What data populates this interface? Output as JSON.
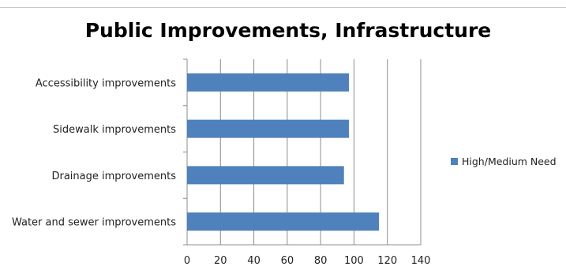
{
  "chart_data": {
    "type": "bar",
    "orientation": "horizontal",
    "title": "Public Improvements, Infrastructure",
    "categories": [
      "Accessibility improvements",
      "Sidewalk improvements",
      "Drainage improvements",
      "Water and sewer improvements"
    ],
    "series": [
      {
        "name": "High/Medium Need",
        "values": [
          97,
          97,
          94,
          115
        ],
        "color": "#4f81bd"
      }
    ],
    "xlim": [
      0,
      140
    ],
    "xticks": [
      0,
      20,
      40,
      60,
      80,
      100,
      120,
      140
    ],
    "grid": "vertical major gridlines",
    "legend_position": "right"
  }
}
